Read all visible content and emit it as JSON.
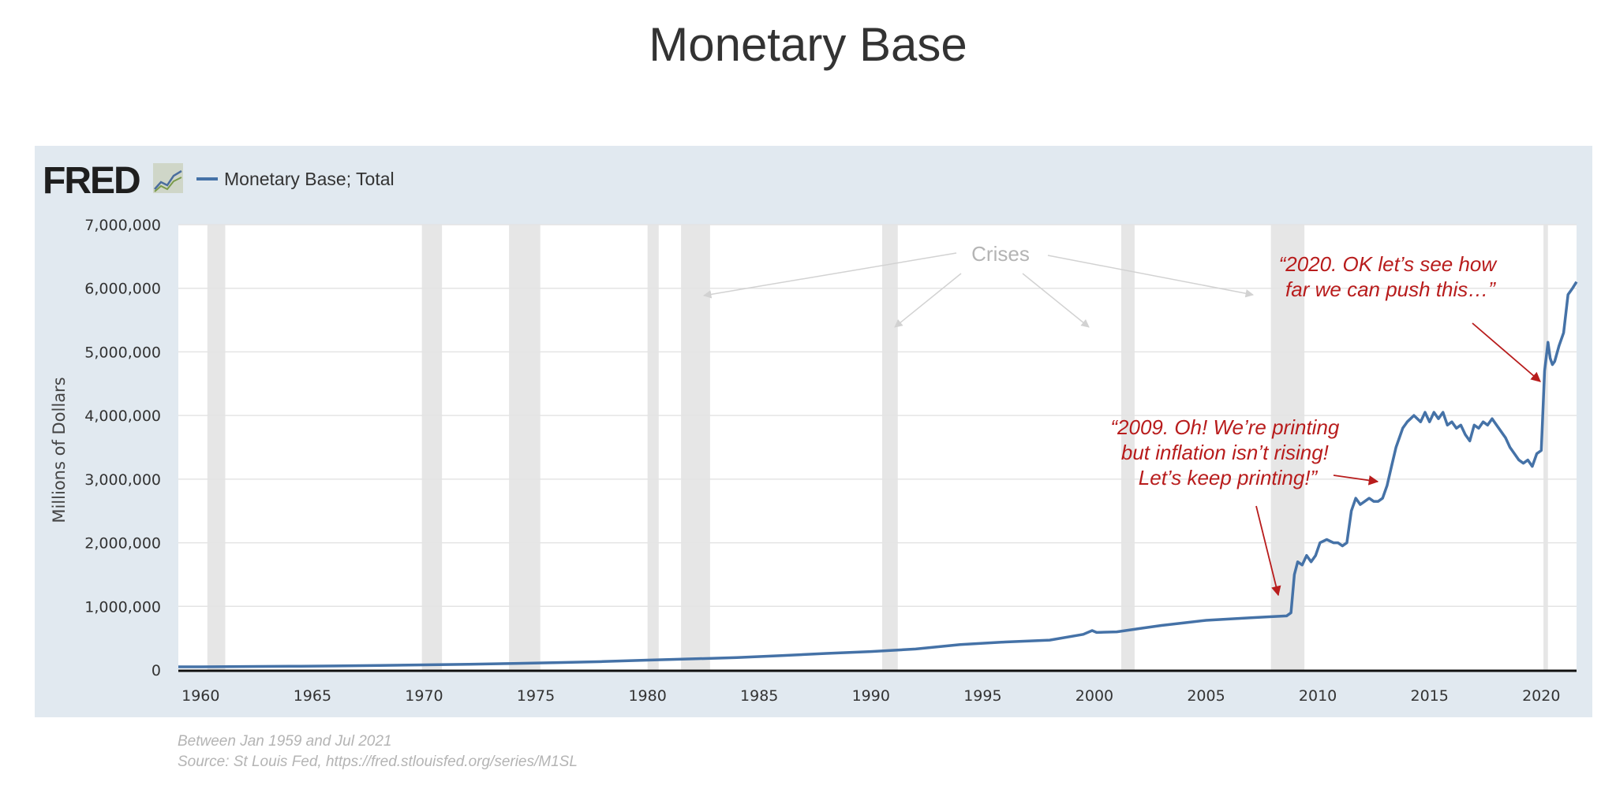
{
  "page": {
    "title": "Monetary Base",
    "date_range_note": "Between Jan 1959 and Jul 2021",
    "source_note": "Source: St Louis Fed, https://fred.stlouisfed.org/series/M1SL"
  },
  "branding": {
    "logo_text": "FRED",
    "logo_icon": "line-graph-icon"
  },
  "chart_data": {
    "type": "line",
    "title": "",
    "xlabel": "",
    "ylabel": "Millions of Dollars",
    "xlim": [
      1959.0,
      2021.58
    ],
    "ylim": [
      0,
      7000000
    ],
    "yticks": [
      0,
      1000000,
      2000000,
      3000000,
      4000000,
      5000000,
      6000000,
      7000000
    ],
    "ytick_labels": [
      "0",
      "1,000,000",
      "2,000,000",
      "3,000,000",
      "4,000,000",
      "5,000,000",
      "6,000,000",
      "7,000,000"
    ],
    "xticks": [
      1960,
      1965,
      1970,
      1975,
      1980,
      1985,
      1990,
      1995,
      2000,
      2005,
      2010,
      2015,
      2020
    ],
    "xtick_labels": [
      "1960",
      "1965",
      "1970",
      "1975",
      "1980",
      "1985",
      "1990",
      "1995",
      "2000",
      "2005",
      "2010",
      "2015",
      "2020"
    ],
    "grid": true,
    "legend_position": "top-left",
    "recessions": [
      [
        1960.3,
        1961.1
      ],
      [
        1969.9,
        1970.8
      ],
      [
        1973.8,
        1975.2
      ],
      [
        1980.0,
        1980.5
      ],
      [
        1981.5,
        1982.8
      ],
      [
        1990.5,
        1991.2
      ],
      [
        2001.2,
        2001.8
      ],
      [
        2007.9,
        2009.4
      ],
      [
        2020.1,
        2020.3
      ]
    ],
    "series": [
      {
        "name": "Monetary Base; Total",
        "color": "#4572a7",
        "x": [
          1959.0,
          1960,
          1962,
          1964,
          1966,
          1968,
          1970,
          1972,
          1974,
          1976,
          1978,
          1980,
          1982,
          1984,
          1986,
          1988,
          1990,
          1992,
          1994,
          1996,
          1998,
          1999.5,
          1999.9,
          2000.1,
          2001,
          2002,
          2003,
          2004,
          2005,
          2006,
          2007,
          2008.0,
          2008.6,
          2008.8,
          2008.95,
          2009.1,
          2009.3,
          2009.5,
          2009.7,
          2009.9,
          2010.1,
          2010.4,
          2010.7,
          2010.9,
          2011.1,
          2011.3,
          2011.5,
          2011.7,
          2011.9,
          2012.1,
          2012.3,
          2012.5,
          2012.7,
          2012.9,
          2013.1,
          2013.3,
          2013.5,
          2013.8,
          2014.0,
          2014.3,
          2014.6,
          2014.8,
          2015.0,
          2015.2,
          2015.4,
          2015.6,
          2015.8,
          2016.0,
          2016.2,
          2016.4,
          2016.6,
          2016.8,
          2017.0,
          2017.2,
          2017.4,
          2017.6,
          2017.8,
          2018.0,
          2018.2,
          2018.4,
          2018.6,
          2018.8,
          2019.0,
          2019.2,
          2019.4,
          2019.6,
          2019.8,
          2020.0,
          2020.15,
          2020.3,
          2020.4,
          2020.5,
          2020.6,
          2020.8,
          2021.0,
          2021.2,
          2021.4,
          2021.58
        ],
        "values": [
          50000,
          50000,
          54000,
          58000,
          63000,
          71000,
          80000,
          90000,
          103000,
          117000,
          132000,
          155000,
          175000,
          195000,
          225000,
          260000,
          290000,
          330000,
          400000,
          440000,
          470000,
          560000,
          620000,
          590000,
          600000,
          650000,
          700000,
          740000,
          780000,
          800000,
          820000,
          840000,
          850000,
          900000,
          1500000,
          1700000,
          1650000,
          1800000,
          1700000,
          1800000,
          2000000,
          2050000,
          2000000,
          2000000,
          1950000,
          2000000,
          2500000,
          2700000,
          2600000,
          2650000,
          2700000,
          2650000,
          2650000,
          2700000,
          2900000,
          3200000,
          3500000,
          3800000,
          3900000,
          4000000,
          3900000,
          4050000,
          3900000,
          4050000,
          3950000,
          4050000,
          3850000,
          3900000,
          3800000,
          3850000,
          3700000,
          3600000,
          3850000,
          3800000,
          3900000,
          3850000,
          3950000,
          3850000,
          3750000,
          3650000,
          3500000,
          3400000,
          3300000,
          3250000,
          3300000,
          3200000,
          3400000,
          3450000,
          4700000,
          5150000,
          4900000,
          4800000,
          4850000,
          5100000,
          5300000,
          5900000,
          6000000,
          6100000
        ]
      }
    ],
    "annotations": [
      {
        "text": "Crises",
        "color": "#b4b4b4",
        "italic": false
      },
      {
        "text": "“2009. Oh! We’re printing but inflation isn’t rising! Let’s keep printing!”",
        "color": "#b81c1c",
        "italic": true,
        "lines": [
          "“2009. Oh! We’re printing",
          "but inflation isn’t rising!",
          "Let’s keep printing!”"
        ]
      },
      {
        "text": "“2020. OK let’s see how far we can push this…”",
        "color": "#b81c1c",
        "italic": true,
        "lines": [
          "“2020. OK let’s see how",
          "far we can push this…”"
        ]
      }
    ]
  }
}
